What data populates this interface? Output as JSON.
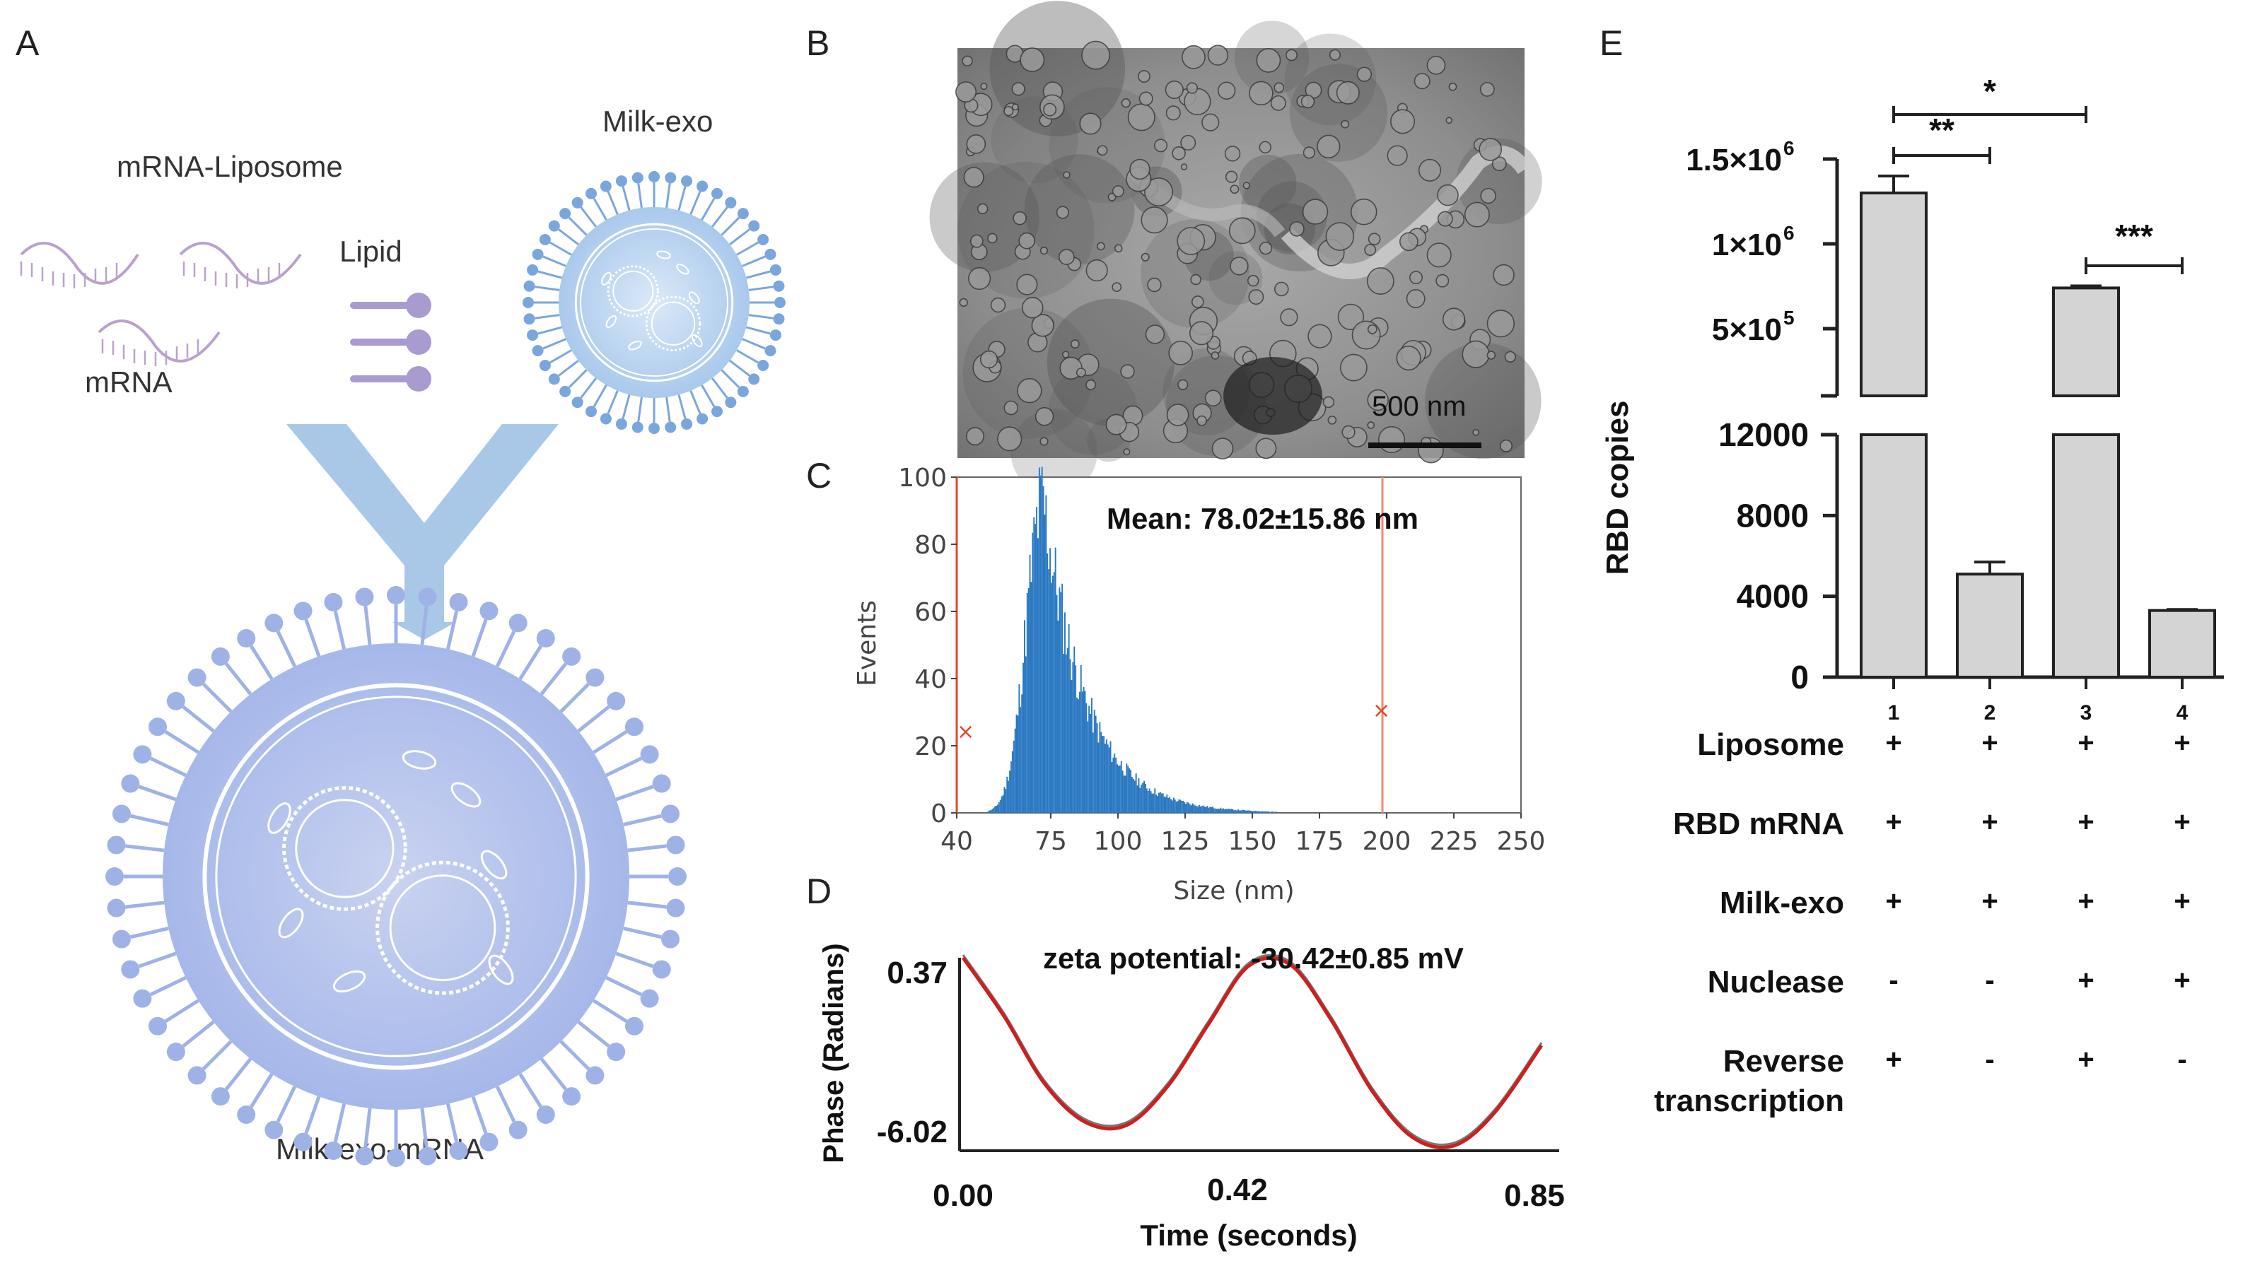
{
  "panels": {
    "a": "A",
    "b": "B",
    "c": "C",
    "d": "D",
    "e": "E"
  },
  "panel_a": {
    "mrna_liposome": "mRNA-Liposome",
    "lipid": "Lipid",
    "mrna": "mRNA",
    "milk_exo": "Milk-exo",
    "milk_exo_mrna": "Milk-exo-mRNA",
    "colors": {
      "mrna": "#b9a2cc",
      "lipid": "#a99bd0",
      "exo": "#7ba6dc",
      "arrow": "#a9c8e8"
    }
  },
  "panel_b": {
    "scale_bar": "500 nm"
  },
  "panel_c": {
    "annotation": "Mean: 78.02±15.86 nm",
    "xlabel": "Size (nm)",
    "ylabel": "Events",
    "xticks": [
      "40",
      "75",
      "100",
      "125",
      "150",
      "175",
      "200",
      "225",
      "250"
    ],
    "yticks": [
      "0",
      "20",
      "40",
      "60",
      "80",
      "100"
    ]
  },
  "panel_d": {
    "annotation": "zeta potential: -30.42±0.85 mV",
    "xlabel": "Time (seconds)",
    "ylabel": "Phase (Radians)",
    "xticks": [
      "0.00",
      "0.42",
      "0.85"
    ],
    "yticks": [
      "0.37",
      "-6.02"
    ]
  },
  "panel_e": {
    "ylabel": "RBD copies",
    "yticks_upper": [
      "1.5×10",
      "1×10",
      "5×10"
    ],
    "yticks_upper_exp": [
      "6",
      "6",
      "5"
    ],
    "yticks_lower": [
      "12000",
      "8000",
      "4000",
      "0"
    ],
    "groups": [
      "1",
      "2",
      "3",
      "4"
    ],
    "sig": [
      "*",
      "**",
      "***"
    ],
    "rows": [
      {
        "label": "Liposome",
        "label2": "",
        "values": [
          "+",
          "+",
          "+",
          "+"
        ]
      },
      {
        "label": "RBD mRNA",
        "label2": "",
        "values": [
          "+",
          "+",
          "+",
          "+"
        ]
      },
      {
        "label": "Milk-exo",
        "label2": "",
        "values": [
          "+",
          "+",
          "+",
          "+"
        ]
      },
      {
        "label": "Nuclease",
        "label2": "",
        "values": [
          "-",
          "-",
          "+",
          "+"
        ]
      },
      {
        "label": "Reverse",
        "label2": "transcription",
        "values": [
          "+",
          "-",
          "+",
          "-"
        ]
      }
    ]
  },
  "chart_data": [
    {
      "type": "bar",
      "title": "",
      "xlabel": "Size (nm)",
      "ylabel": "Events",
      "xlim": [
        40,
        250
      ],
      "ylim": [
        0,
        100
      ],
      "mean_annotation": "Mean: 78.02±15.86 nm",
      "marker_x": 200,
      "distribution": {
        "mode_nm": 72,
        "peak_events": 97,
        "mean_nm": 78.02,
        "sd_nm": 15.86
      },
      "color": "#2a78c2"
    },
    {
      "type": "line",
      "title": "",
      "xlabel": "Time (seconds)",
      "ylabel": "Phase (Radians)",
      "xlim": [
        0.0,
        0.85
      ],
      "ylim": [
        -6.02,
        0.37
      ],
      "x": [
        0.0,
        0.06,
        0.12,
        0.18,
        0.24,
        0.3,
        0.36,
        0.42,
        0.48,
        0.54,
        0.6,
        0.66,
        0.72,
        0.78,
        0.85
      ],
      "series": [
        {
          "name": "",
          "color": "#cc1f1f",
          "values": [
            0.37,
            -1.6,
            -3.9,
            -5.2,
            -5.3,
            -4.0,
            -1.9,
            0.1,
            0.15,
            -1.7,
            -4.1,
            -5.7,
            -6.0,
            -4.9,
            -2.6
          ]
        }
      ]
    },
    {
      "type": "bar",
      "title": "",
      "xlabel": "",
      "ylabel": "RBD copies",
      "categories": [
        "1",
        "2",
        "3",
        "4"
      ],
      "values": [
        1300000,
        5100,
        740000,
        3300
      ],
      "errors": [
        100000,
        600,
        12000,
        50
      ],
      "axis_break": {
        "lower_range": [
          0,
          12000
        ],
        "upper_range": [
          0,
          1500000
        ]
      },
      "color": "#d4d4d4",
      "significance": [
        {
          "from": "1",
          "to": "3",
          "label": "*"
        },
        {
          "from": "1",
          "to": "2",
          "label": "**"
        },
        {
          "from": "3",
          "to": "4",
          "label": "***"
        }
      ]
    }
  ]
}
